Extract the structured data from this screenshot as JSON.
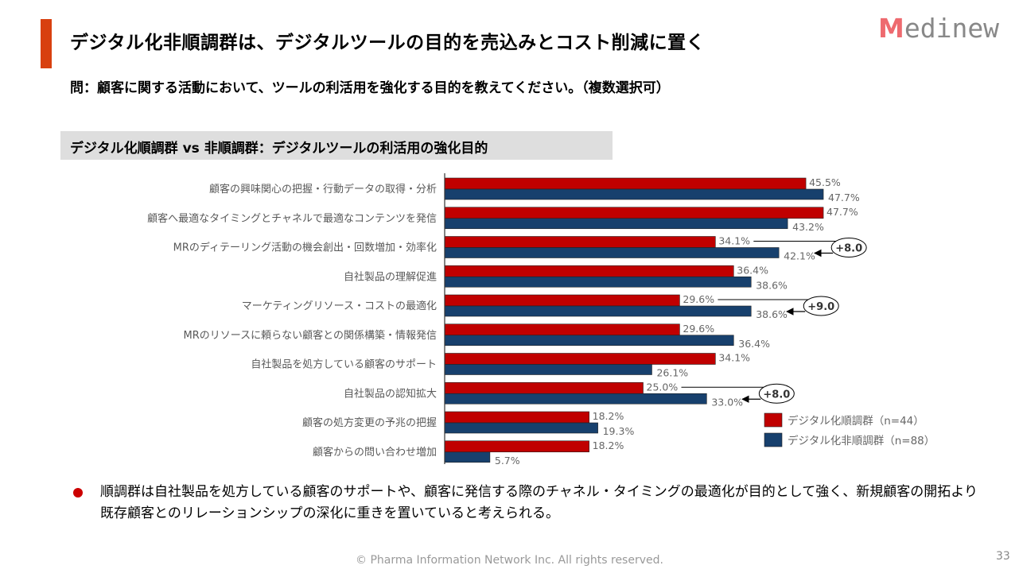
{
  "header": {
    "title": "デジタル化非順調群は、デジタルツールの目的を売込みとコスト削減に置く",
    "logo": "Medinew",
    "logo_first": "M",
    "logo_rest": "edinew",
    "accent_color": "#d8400f"
  },
  "question": "問：顧客に関する活動において、ツールの利活用を強化する目的を教えてください。（複数選択可）",
  "chart_data": {
    "type": "bar",
    "orientation": "horizontal",
    "title": "デジタル化順調群 vs 非順調群：デジタルツールの利活用の強化目的",
    "categories": [
      "顧客の興味関心の把握・行動データの取得・分析",
      "顧客へ最適なタイミングとチャネルで最適なコンテンツを発信",
      "MRのディテーリング活動の機会創出・回数増加・効率化",
      "自社製品の理解促進",
      "マーケティングリソース・コストの最適化",
      "MRのリソースに頼らない顧客との関係構築・情報発信",
      "自社製品を処方している顧客のサポート",
      "自社製品の認知拡大",
      "顧客の処方変更の予兆の把握",
      "顧客からの問い合わせ増加"
    ],
    "series": [
      {
        "name": "デジタル化順調群（n=44）",
        "color": "#c00000",
        "values": [
          45.5,
          47.7,
          34.1,
          36.4,
          29.6,
          29.6,
          34.1,
          25.0,
          18.2,
          18.2
        ]
      },
      {
        "name": "デジタル化非順調群（n=88）",
        "color": "#17406d",
        "values": [
          47.7,
          43.2,
          42.1,
          38.6,
          38.6,
          36.4,
          26.1,
          33.0,
          19.3,
          5.7
        ]
      }
    ],
    "value_labels": [
      [
        "45.5%",
        "47.7%",
        "34.1%",
        "36.4%",
        "29.6%",
        "29.6%",
        "34.1%",
        "25.0%",
        "18.2%",
        "18.2%"
      ],
      [
        "47.7%",
        "43.2%",
        "42.1%",
        "38.6%",
        "38.6%",
        "36.4%",
        "26.1%",
        "33.0%",
        "19.3%",
        "5.7%"
      ]
    ],
    "annotations": [
      {
        "category_index": 2,
        "label": "+8.0"
      },
      {
        "category_index": 4,
        "label": "+9.0"
      },
      {
        "category_index": 7,
        "label": "+8.0"
      }
    ],
    "xlim": [
      0,
      50
    ],
    "grid": false,
    "legend_position": "bottom-right"
  },
  "note": "順調群は自社製品を処方している顧客のサポートや、顧客に発信する際のチャネル・タイミングの最適化が目的として強く、新規顧客の開拓より既存顧客とのリレーションシップの深化に重きを置いていると考えられる。",
  "footer": "© Pharma Information Network Inc.  All rights reserved.",
  "page_number": "33"
}
